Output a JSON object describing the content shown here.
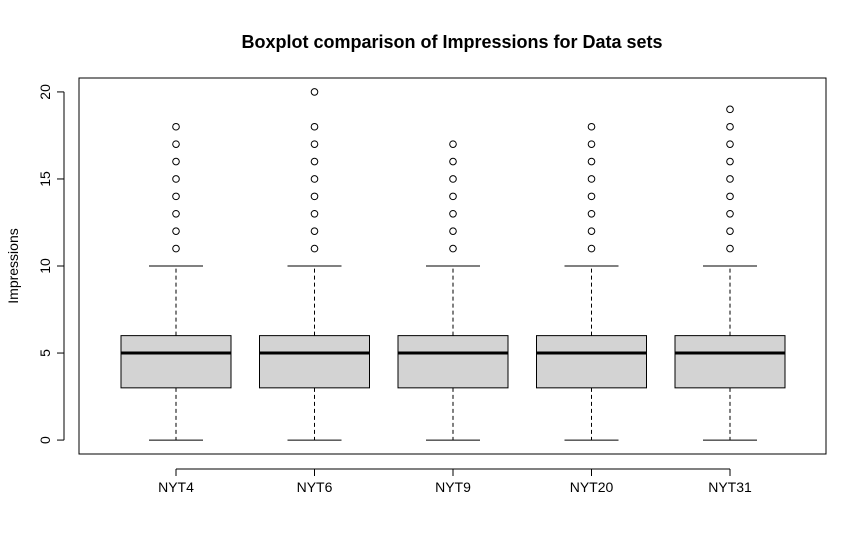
{
  "chart_data": {
    "type": "boxplot",
    "title": "Boxplot comparison of Impressions for Data sets",
    "xlabel": "",
    "ylabel": "Impressions",
    "ylim": [
      -0.8,
      20.8
    ],
    "yticks": [
      0,
      5,
      10,
      15,
      20
    ],
    "categories": [
      "NYT4",
      "NYT6",
      "NYT9",
      "NYT20",
      "NYT31"
    ],
    "boxes": [
      {
        "min": 0,
        "q1": 3,
        "median": 5,
        "q3": 6,
        "max": 10,
        "outliers": [
          11,
          12,
          13,
          14,
          15,
          16,
          17,
          18
        ]
      },
      {
        "min": 0,
        "q1": 3,
        "median": 5,
        "q3": 6,
        "max": 10,
        "outliers": [
          11,
          12,
          13,
          14,
          15,
          16,
          17,
          18,
          20
        ]
      },
      {
        "min": 0,
        "q1": 3,
        "median": 5,
        "q3": 6,
        "max": 10,
        "outliers": [
          11,
          12,
          13,
          14,
          15,
          16,
          17
        ]
      },
      {
        "min": 0,
        "q1": 3,
        "median": 5,
        "q3": 6,
        "max": 10,
        "outliers": [
          11,
          12,
          13,
          14,
          15,
          16,
          17,
          18
        ]
      },
      {
        "min": 0,
        "q1": 3,
        "median": 5,
        "q3": 6,
        "max": 10,
        "outliers": [
          11,
          12,
          13,
          14,
          15,
          16,
          17,
          18,
          19
        ]
      }
    ],
    "box_fill": "#d3d3d3",
    "grid": false,
    "legend": "none"
  }
}
